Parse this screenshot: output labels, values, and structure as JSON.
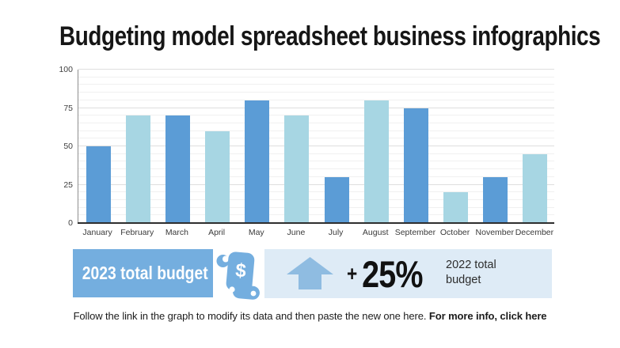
{
  "title": "Budgeting model spreadsheet business infographics",
  "colors": {
    "bar_primary": "#5B9CD6",
    "bar_secondary": "#A7D6E3",
    "box_blue": "#74AEDF",
    "scroll_icon_blue": "#74AEDF",
    "arrow_blue": "#8FBCE1",
    "panel_bg": "#DEEBF6",
    "gridline_major": "#dedede",
    "gridline_minor": "#f0f0f0",
    "axis_line": "#8f8f8f",
    "baseline": "#2e2e2e",
    "title_text": "#161616",
    "axis_text": "#3f3f3f",
    "white_text": "#ffffff"
  },
  "chart_data": {
    "type": "bar",
    "title": "",
    "xlabel": "",
    "ylabel": "",
    "categories": [
      "January",
      "February",
      "March",
      "April",
      "May",
      "June",
      "July",
      "August",
      "September",
      "October",
      "November",
      "December"
    ],
    "values": [
      50,
      70,
      70,
      60,
      80,
      70,
      30,
      80,
      75,
      20,
      30,
      45
    ],
    "ylim": [
      0,
      100
    ],
    "yticks": [
      0,
      25,
      50,
      75,
      100
    ],
    "minor_grid_step": 5,
    "grid": "horizontal",
    "legend": "none",
    "bar_color_pattern": "alternating: odd months #5B9CD6 (medium blue), even months #A7D6E3 (light blue)"
  },
  "summary": {
    "budget_2023_label": "2023 total budget",
    "scroll_icon": "scroll-dollar-icon",
    "scroll_icon_symbol": "$",
    "arrow_icon": "up-arrow-icon",
    "change_plus": "+",
    "change_value": "25%",
    "budget_2022_label": "2022 total budget"
  },
  "footer": {
    "text": "Follow the link in the graph to modify its data and then paste the new one here. ",
    "link_text": "For more info, click here"
  }
}
